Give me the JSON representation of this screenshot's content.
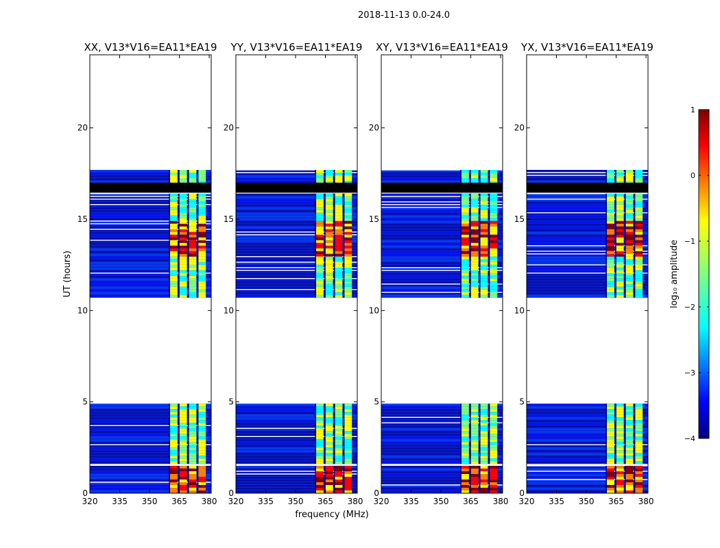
{
  "figure": {
    "suptitle": "2018-11-13 0.0-24.0",
    "ylabel": "UT (hours)",
    "xlabel": "frequency (MHz)"
  },
  "chart_data": {
    "type": "heatmap",
    "ylim": [
      0,
      24
    ],
    "xlim": [
      320,
      381
    ],
    "yticks": [
      0,
      5,
      10,
      15,
      20
    ],
    "ytick_labels": [
      "0",
      "5",
      "10",
      "15",
      "20"
    ],
    "xticks": [
      320,
      335,
      350,
      365,
      380
    ],
    "xtick_labels": [
      "320",
      "335",
      "350",
      "365",
      "380"
    ],
    "panels": [
      {
        "title": "XX, V13*V16=EA11*EA19"
      },
      {
        "title": "YY, V13*V16=EA11*EA19"
      },
      {
        "title": "XY, V13*V16=EA11*EA19"
      },
      {
        "title": "YX, V13*V16=EA11*EA19"
      }
    ],
    "data_time_ranges": [
      [
        0,
        1.5
      ],
      [
        1.6,
        4.9
      ],
      [
        10.7,
        16.4
      ],
      [
        16.5,
        17.7
      ]
    ],
    "flagged_time_ranges": [
      [
        16.45,
        17.0
      ]
    ],
    "rfi_band_mhz": [
      360,
      379
    ],
    "colorbar": {
      "label": "log₁₀ amplitude",
      "min": -4,
      "max": 1,
      "ticks": [
        1,
        0,
        -1,
        -2,
        -3,
        -4
      ],
      "tick_labels": [
        "1",
        "0",
        "−1",
        "−2",
        "−3",
        "−4"
      ],
      "colors": [
        "#00007f",
        "#0000ff",
        "#007fff",
        "#00ffff",
        "#7fff7f",
        "#ffff00",
        "#ff7f00",
        "#ff0000",
        "#7f0000"
      ]
    }
  }
}
